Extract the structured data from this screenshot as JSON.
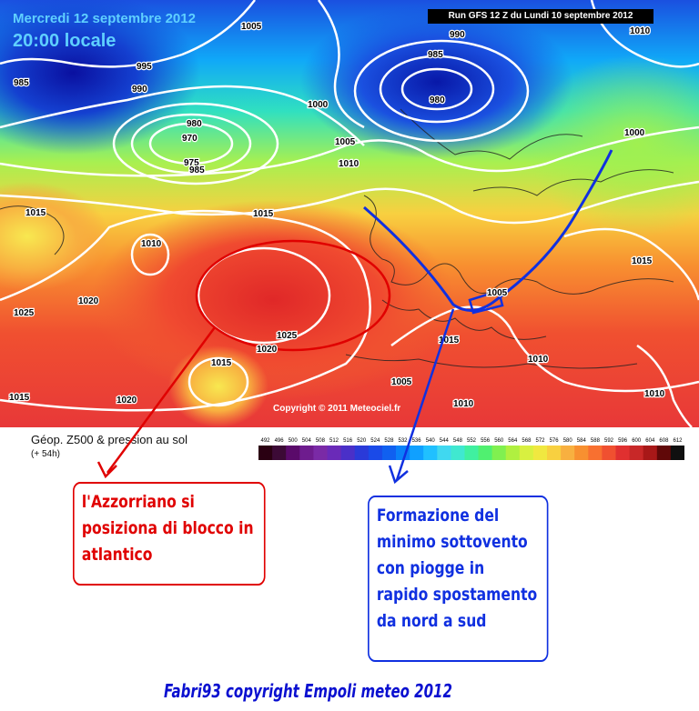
{
  "header": {
    "date": "Mercredi 12 septembre 2012",
    "time": "20:00 locale",
    "run": "Run GFS 12 Z du Lundi 10 septembre 2012"
  },
  "copyright": "Copyright © 2011 Meteociel.fr",
  "legend": {
    "label": "Géop. Z500 & pression au sol",
    "sub": "(+ 54h)",
    "scale_values": [
      "492",
      "496",
      "500",
      "504",
      "508",
      "512",
      "516",
      "520",
      "524",
      "528",
      "532",
      "536",
      "540",
      "544",
      "548",
      "552",
      "556",
      "560",
      "564",
      "568",
      "572",
      "576",
      "580",
      "584",
      "588",
      "592",
      "596",
      "600",
      "604",
      "608",
      "612"
    ],
    "scale_colors": [
      "#2a0012",
      "#3c0a36",
      "#5a0a6a",
      "#6e1c8e",
      "#7a2aa6",
      "#6a2ab8",
      "#4a30c8",
      "#2a3ad8",
      "#1a4ae8",
      "#1060f0",
      "#0a80f8",
      "#10a0ff",
      "#20c0ff",
      "#40d8f0",
      "#40e8d0",
      "#40f0a0",
      "#50f070",
      "#80f050",
      "#b0f040",
      "#d8f040",
      "#f0e840",
      "#f8d040",
      "#f8b040",
      "#f89030",
      "#f87030",
      "#f05030",
      "#e03030",
      "#c82828",
      "#a81818",
      "#600808",
      "#101010"
    ]
  },
  "isobars": [
    "1005",
    "995",
    "990",
    "985",
    "980",
    "970",
    "975",
    "985",
    "1000",
    "1005",
    "1010",
    "990",
    "985",
    "980",
    "1010",
    "1000",
    "1015",
    "1010",
    "1020",
    "1025",
    "1015",
    "1025",
    "1020",
    "1015",
    "1020",
    "1005",
    "1015",
    "1010",
    "1010",
    "1015",
    "1015",
    "1005",
    "1010"
  ],
  "annotations": {
    "red": "l'Azzorriano si posiziona di blocco in atlantico",
    "blue": "Formazione del minimo sottovento con piogge in rapido spostamento da nord a sud"
  },
  "footer": "Fabri93 copyright Empoli meteo 2012",
  "colors": {
    "annotation_red": "#e00000",
    "annotation_blue": "#1030e0",
    "footer_blue": "#0a10d0"
  }
}
